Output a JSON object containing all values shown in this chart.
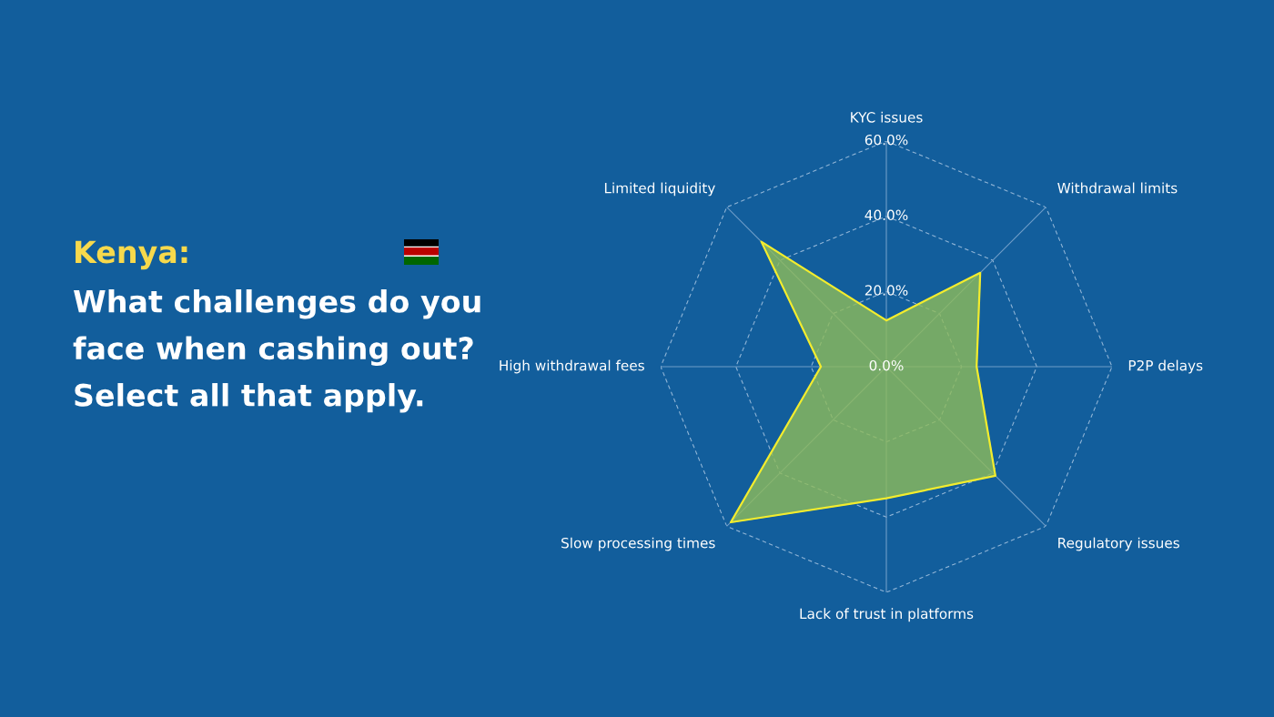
{
  "chart_data": {
    "type": "radar",
    "title": "Kenya:",
    "subtitle": "What challenges do you face when cashing out? Select all that apply.",
    "categories": [
      "KYC issues",
      "Withdrawal limits",
      "P2P delays",
      "Regulatory issues",
      "Lack of trust in platforms",
      "Slow processing times",
      "High withdrawal fees",
      "Limited liquidity"
    ],
    "series": [
      {
        "color": "#f2ec2e",
        "values": [
          12.3,
          35.3,
          24,
          41,
          35,
          58.5,
          17.4,
          47
        ]
      }
    ],
    "ylim": [
      0,
      60
    ],
    "yticks": [
      {
        "value": 0,
        "label": "0.0%"
      },
      {
        "value": 20,
        "label": "20.0%"
      },
      {
        "value": 40,
        "label": "40.0%"
      },
      {
        "value": 60,
        "label": "60.0%"
      }
    ],
    "grid": true,
    "legend": false
  }
}
